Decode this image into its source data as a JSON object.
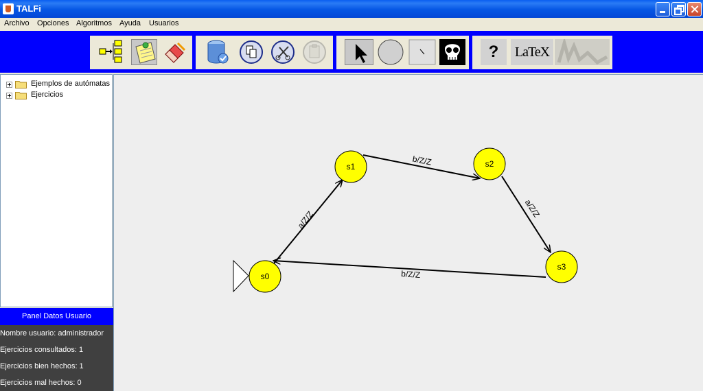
{
  "window": {
    "title": "TALFi"
  },
  "menu": [
    "Archivo",
    "Opciones",
    "Algoritmos",
    "Ayuda",
    "Usuarios"
  ],
  "toolbar": {
    "latex_label": "LaTeX",
    "help_glyph": "?",
    "groups": [
      [
        "tree-icon",
        "notes-icon",
        "eraser-icon"
      ],
      [
        "database-icon",
        "copy-icon",
        "cut-icon",
        "paste-icon-disabled"
      ],
      [
        "select-arrow-icon",
        "state-circle-icon",
        "transition-line-icon",
        "skull-icon"
      ],
      [
        "help-icon",
        "latex-icon",
        "chart-icon-disabled"
      ]
    ]
  },
  "tree": {
    "items": [
      "Ejemplos de autómatas",
      "Ejercicios"
    ]
  },
  "user_panel": {
    "header": "Panel Datos Usuario",
    "lines": [
      "Nombre usuario: administrador",
      "Ejercicios consultados: 1",
      "Ejercicios bien hechos: 1",
      "Ejercicios mal hechos: 0"
    ]
  },
  "automaton": {
    "initial_state": "s0",
    "states": [
      "s0",
      "s1",
      "s2",
      "s3"
    ],
    "transitions": [
      {
        "from": "s0",
        "to": "s1",
        "label": "a/Z/Z"
      },
      {
        "from": "s1",
        "to": "s2",
        "label": "b/Z/Z"
      },
      {
        "from": "s2",
        "to": "s3",
        "label": "a/Z/Z"
      },
      {
        "from": "s3",
        "to": "s0",
        "label": "b/Z/Z"
      }
    ],
    "state_color": "#FFFF00"
  },
  "colors": {
    "toolbar_bg": "#0000FF",
    "user_panel_bg": "#404040",
    "canvas_bg": "#EEEEEE"
  }
}
